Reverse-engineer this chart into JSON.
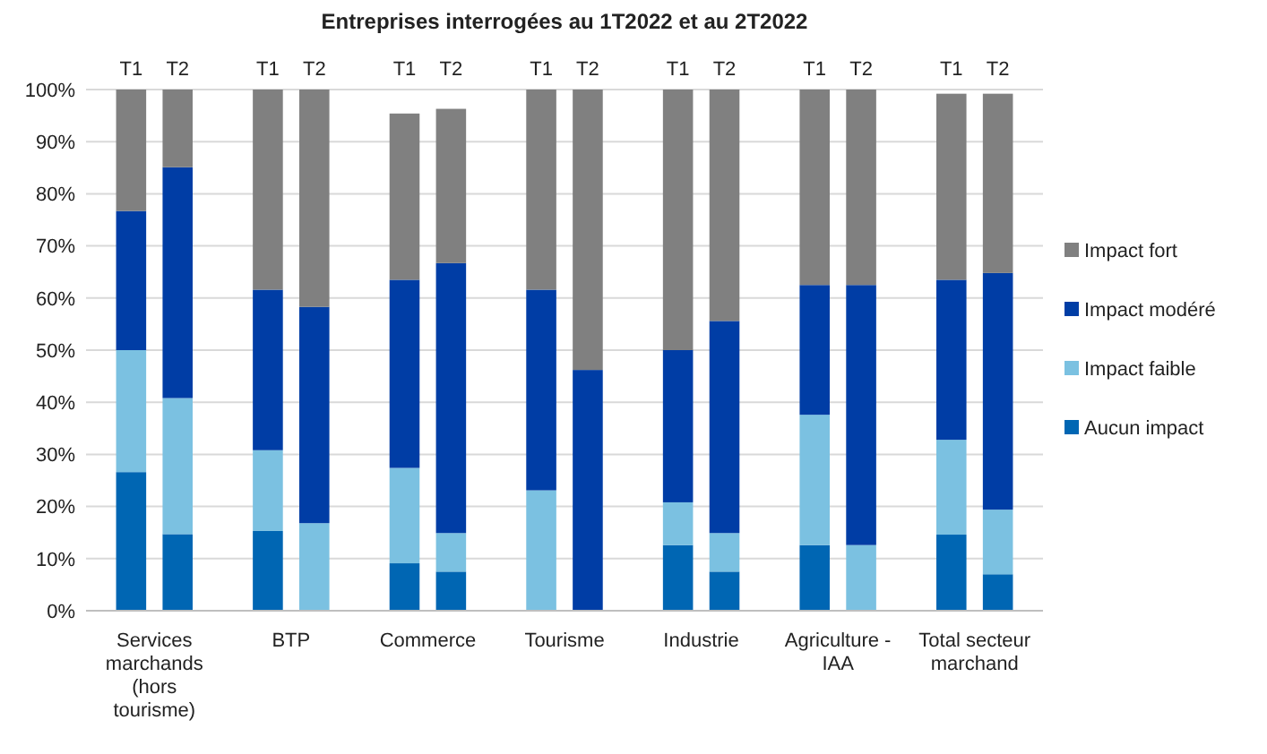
{
  "chart_data": {
    "type": "bar",
    "stacked": true,
    "title": "Entreprises interrogées au 1T2022 et au 2T2022",
    "categories": [
      "T1",
      "T2",
      "T1",
      "T2",
      "T1",
      "T2",
      "T1",
      "T2",
      "T1",
      "T2",
      "T1",
      "T2",
      "T1",
      "T2"
    ],
    "annotations": [
      "Services marchands (hors tourisme)",
      "BTP",
      "Commerce",
      "Tourisme",
      "Industrie",
      "Agriculture - IAA",
      "Total secteur marchand"
    ],
    "series": [
      {
        "name": "Aucun impact",
        "color": "#0066b3",
        "values": [
          26.6,
          14.7,
          15.3,
          0,
          9.1,
          7.5,
          0,
          0,
          12.6,
          7.5,
          12.6,
          0,
          14.6,
          7.0
        ]
      },
      {
        "name": "Impact faible",
        "color": "#7bc1e1",
        "values": [
          23.4,
          26.1,
          15.5,
          16.8,
          18.3,
          7.4,
          23.1,
          0,
          8.2,
          7.4,
          25.0,
          12.6,
          18.2,
          12.4
        ]
      },
      {
        "name": "Impact modéré",
        "color": "#003da5",
        "values": [
          26.7,
          44.3,
          30.8,
          41.5,
          36.1,
          51.8,
          38.5,
          46.2,
          29.2,
          40.7,
          24.9,
          49.9,
          30.7,
          45.4
        ]
      },
      {
        "name": "Impact fort",
        "color": "#808080",
        "values": [
          23.3,
          14.9,
          38.4,
          41.7,
          31.9,
          29.6,
          38.4,
          53.8,
          50.0,
          44.4,
          37.5,
          37.5,
          35.7,
          34.4
        ]
      }
    ],
    "ylim": [
      0,
      100
    ],
    "yticks": [
      {
        "value": 0,
        "label": "0%"
      },
      {
        "value": 10,
        "label": "10%"
      },
      {
        "value": 20,
        "label": "20%"
      },
      {
        "value": 30,
        "label": "30%"
      },
      {
        "value": 40,
        "label": "40%"
      },
      {
        "value": 50,
        "label": "50%"
      },
      {
        "value": 60,
        "label": "60%"
      },
      {
        "value": 70,
        "label": "70%"
      },
      {
        "value": 80,
        "label": "80%"
      },
      {
        "value": 90,
        "label": "90%"
      },
      {
        "value": 100,
        "label": "100%"
      }
    ],
    "grid": "y",
    "legend": "right"
  }
}
